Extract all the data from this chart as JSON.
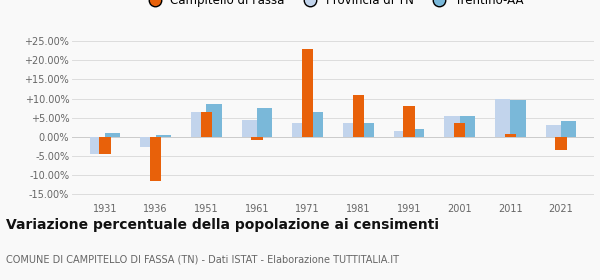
{
  "years": [
    1931,
    1936,
    1951,
    1961,
    1971,
    1981,
    1991,
    2001,
    2011,
    2021
  ],
  "campitello": [
    -4.5,
    -11.5,
    6.5,
    -0.8,
    23.0,
    11.0,
    8.0,
    3.5,
    0.8,
    -3.5
  ],
  "provincia": [
    -4.5,
    -2.8,
    6.5,
    4.5,
    3.5,
    3.5,
    1.5,
    5.5,
    10.0,
    3.0
  ],
  "trentino": [
    1.0,
    0.5,
    8.5,
    7.5,
    6.5,
    3.5,
    2.0,
    5.5,
    9.5,
    4.0
  ],
  "color_campitello": "#e8610a",
  "color_provincia": "#c2d4ec",
  "color_trentino": "#7ab8d9",
  "title": "Variazione percentuale della popolazione ai censimenti",
  "subtitle": "COMUNE DI CAMPITELLO DI FASSA (TN) - Dati ISTAT - Elaborazione TUTTITALIA.IT",
  "ylim": [
    -17,
    27
  ],
  "yticks": [
    -15,
    -10,
    -5,
    0,
    5,
    10,
    15,
    20,
    25
  ],
  "ytick_labels": [
    "-15.00%",
    "-10.00%",
    "-5.00%",
    "0.00%",
    "+5.00%",
    "+10.00%",
    "+15.00%",
    "+20.00%",
    "+25.00%"
  ],
  "bar_width": 0.3,
  "background_color": "#f9f9f9",
  "grid_color": "#dddddd",
  "axis_color": "#cccccc",
  "text_color": "#666666",
  "title_fontsize": 10,
  "subtitle_fontsize": 7,
  "tick_fontsize": 7,
  "legend_fontsize": 8.5
}
